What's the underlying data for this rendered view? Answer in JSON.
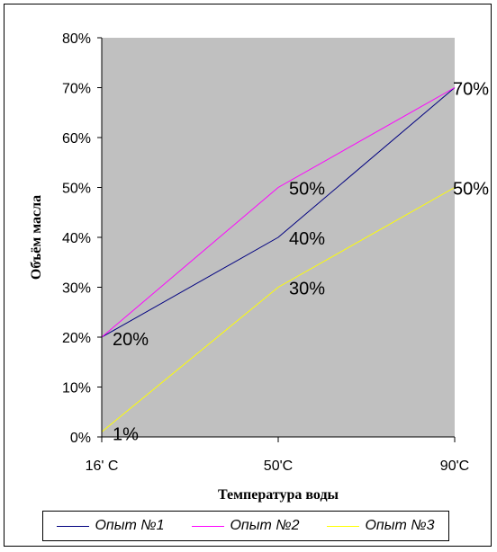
{
  "chart_data": {
    "type": "line",
    "categories": [
      "16' C",
      "50'C",
      "90'C"
    ],
    "y_ticks": [
      "0%",
      "10%",
      "20%",
      "30%",
      "40%",
      "50%",
      "60%",
      "70%",
      "80%"
    ],
    "ylim": [
      0,
      80
    ],
    "xlabel": "Температура воды",
    "ylabel": "Объём масла",
    "plot_background": "#c0c0c0",
    "grid": false,
    "legend_position": "bottom",
    "series": [
      {
        "name": "Опыт №1",
        "color": "#000080",
        "values": [
          20,
          40,
          70
        ],
        "labels": [
          "20%",
          "40%",
          "70%"
        ]
      },
      {
        "name": "Опыт №2",
        "color": "#ff00ff",
        "values": [
          20,
          50,
          70
        ],
        "labels": [
          "",
          "50%",
          ""
        ]
      },
      {
        "name": "Опыт №3",
        "color": "#ffff00",
        "values": [
          1,
          30,
          50
        ],
        "labels": [
          "1%",
          "30%",
          "50%"
        ]
      }
    ]
  }
}
